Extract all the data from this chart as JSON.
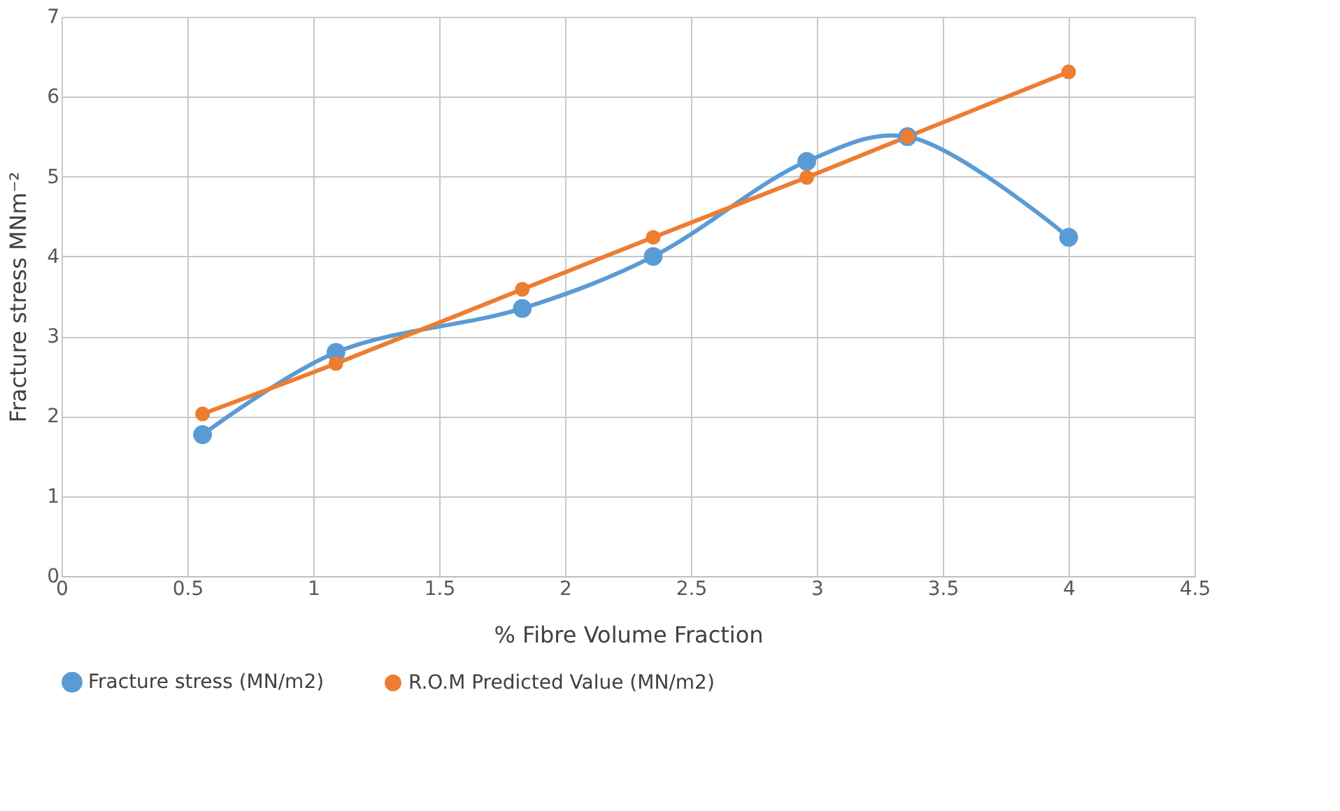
{
  "chart_data": {
    "type": "line",
    "xlabel": "% Fibre Volume Fraction",
    "ylabel": "Fracture stress MNm⁻²",
    "x": [
      0.56,
      1.09,
      1.83,
      2.35,
      2.96,
      3.36,
      4.0
    ],
    "series": [
      {
        "name": "Fracture stress (MN/m2)",
        "color": "#5b9bd5",
        "values": [
          1.77,
          2.8,
          3.35,
          4.0,
          5.19,
          5.5,
          4.24
        ]
      },
      {
        "name": "R.O.M Predicted Value (MN/m2)",
        "color": "#ed7d31",
        "values": [
          2.03,
          2.66,
          3.59,
          4.24,
          4.99,
          5.5,
          6.31
        ]
      }
    ],
    "xlim": [
      0,
      4.5
    ],
    "xticks": [
      0,
      0.5,
      1,
      1.5,
      2,
      2.5,
      3,
      3.5,
      4,
      4.5
    ],
    "ylim": [
      0,
      7
    ],
    "yticks": [
      0,
      1,
      2,
      3,
      4,
      5,
      6,
      7
    ],
    "grid": true,
    "legend": "bottom",
    "marker": "circle",
    "line_style": "solid"
  }
}
